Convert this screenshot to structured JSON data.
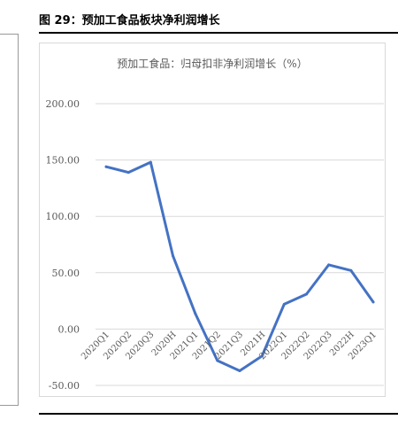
{
  "header": {
    "figure_title": "图 29：预加工食品板块净利润增长"
  },
  "chart_data": {
    "type": "line",
    "title": "预加工食品：归母扣非净利润增长（%）",
    "categories": [
      "2020Q1",
      "2020Q2",
      "2020Q3",
      "2020H",
      "2021Q1",
      "2021Q2",
      "2021Q3",
      "2021H",
      "2022Q1",
      "2022Q2",
      "2022Q3",
      "2022H",
      "2023Q1"
    ],
    "series": [
      {
        "values": [
          144,
          139,
          148,
          65,
          14,
          -28,
          -37,
          -24,
          22,
          31,
          57,
          52,
          24
        ]
      }
    ],
    "yticks": [
      "200.00",
      "150.00",
      "100.00",
      "50.00",
      "0.00",
      "-50.00"
    ],
    "ylim": [
      -50,
      200
    ],
    "grid": true,
    "legend": "none",
    "series_color": "#4472c4"
  }
}
